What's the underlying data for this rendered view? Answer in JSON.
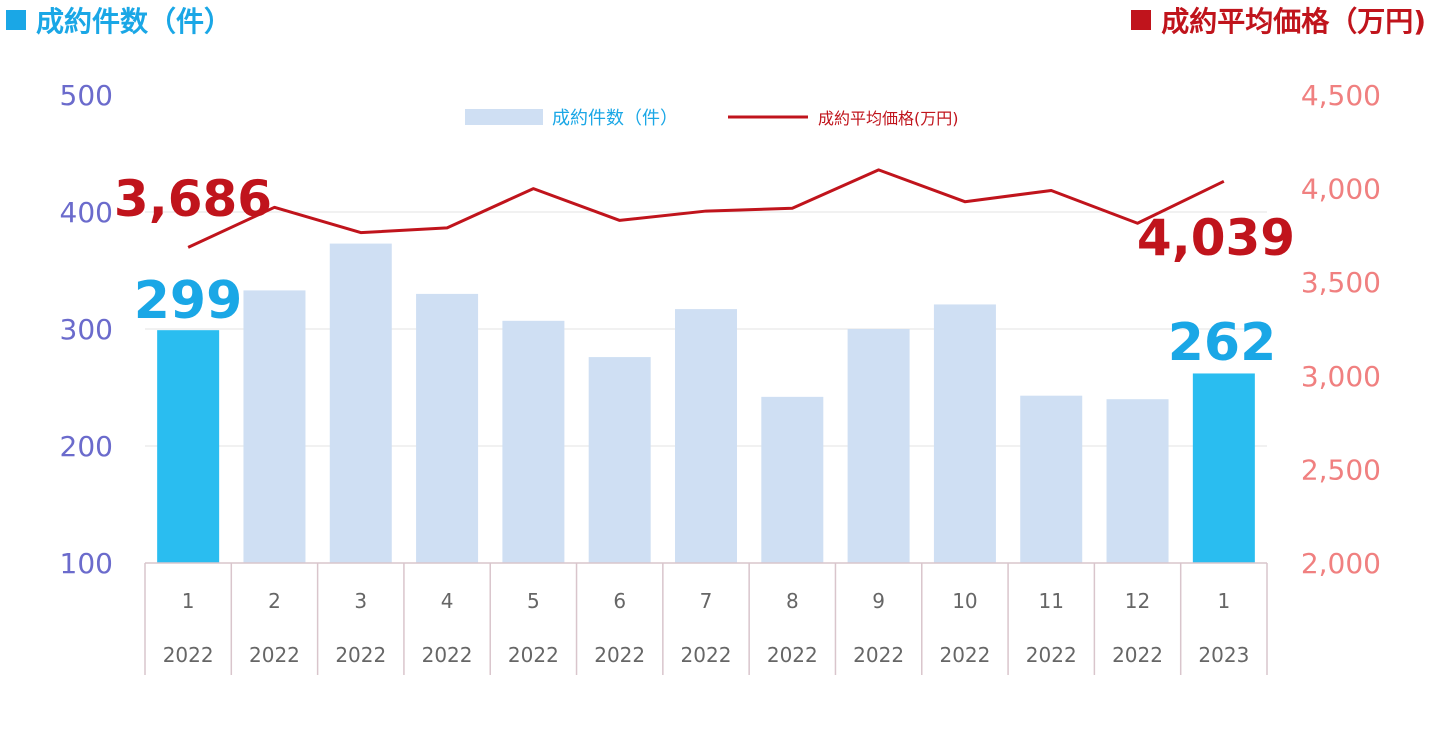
{
  "headers": {
    "left": "成約件数（件）",
    "right": "成約平均価格（万円)"
  },
  "colors": {
    "bar_default": "#cfdff3",
    "bar_highlight": "#2abdf0",
    "line": "#c0141c",
    "left_axis": "#6b6bcc",
    "right_axis": "#f08080",
    "left_header": "#1aa7e6",
    "right_header": "#c0141c",
    "highlight_label_left": "#1aa7e6",
    "highlight_label_line": "#c0141c"
  },
  "chart_data": {
    "type": "bar",
    "title": "",
    "categories": [
      "1",
      "2",
      "3",
      "4",
      "5",
      "6",
      "7",
      "8",
      "9",
      "10",
      "11",
      "12",
      "1"
    ],
    "category_years": [
      "2022",
      "2022",
      "2022",
      "2022",
      "2022",
      "2022",
      "2022",
      "2022",
      "2022",
      "2022",
      "2022",
      "2022",
      "2023"
    ],
    "series": [
      {
        "name": "成約件数（件）",
        "type": "bar",
        "axis": "left",
        "values": [
          299,
          333,
          373,
          330,
          307,
          276,
          317,
          242,
          300,
          321,
          243,
          240,
          262
        ],
        "highlight_indices": [
          0,
          12
        ]
      },
      {
        "name": "成約平均価格(万円)",
        "type": "line",
        "axis": "right",
        "values": [
          3686,
          3900,
          3765,
          3790,
          4000,
          3830,
          3880,
          3895,
          4100,
          3930,
          3990,
          3815,
          4039
        ]
      }
    ],
    "left_axis": {
      "ylim": [
        100,
        500
      ],
      "ticks": [
        "500",
        "400",
        "300",
        "200",
        "100"
      ]
    },
    "right_axis": {
      "ylim": [
        2000,
        4500
      ],
      "ticks": [
        "4,500",
        "4,000",
        "3,500",
        "3,000",
        "2,500",
        "2,000"
      ]
    },
    "callouts": {
      "bar_first": "299",
      "bar_last": "262",
      "line_first": "3,686",
      "line_last": "4,039"
    },
    "grid": true,
    "legend_position": "top-center"
  }
}
